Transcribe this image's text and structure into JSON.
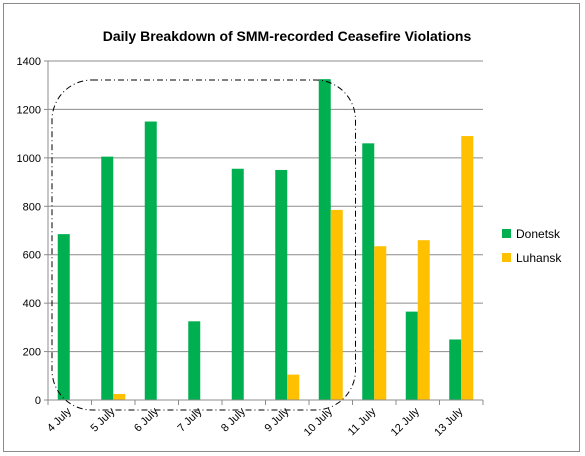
{
  "chart_data": {
    "type": "bar",
    "title": "Daily Breakdown of SMM-recorded Ceasefire Violations",
    "xlabel": "",
    "ylabel": "",
    "categories": [
      "4 July",
      "5 July",
      "6 July",
      "7 July",
      "8 July",
      "9 July",
      "10 July",
      "11 July",
      "12 July",
      "13 July"
    ],
    "series": [
      {
        "name": "Donetsk",
        "color": "#00b050",
        "values": [
          685,
          1005,
          1150,
          325,
          955,
          950,
          1325,
          1060,
          365,
          250
        ]
      },
      {
        "name": "Luhansk",
        "color": "#ffc000",
        "values": [
          0,
          25,
          0,
          0,
          0,
          105,
          785,
          635,
          660,
          1090
        ]
      }
    ],
    "ylim": [
      0,
      1400
    ],
    "yticks": [
      0,
      200,
      400,
      600,
      800,
      1000,
      1200,
      1400
    ],
    "grid": true,
    "legend_position": "right",
    "annotation": {
      "type": "dash-dot rounded rectangle",
      "encloses_categories": [
        "4 July",
        "5 July",
        "6 July",
        "7 July",
        "8 July",
        "9 July",
        "10 July"
      ]
    }
  }
}
